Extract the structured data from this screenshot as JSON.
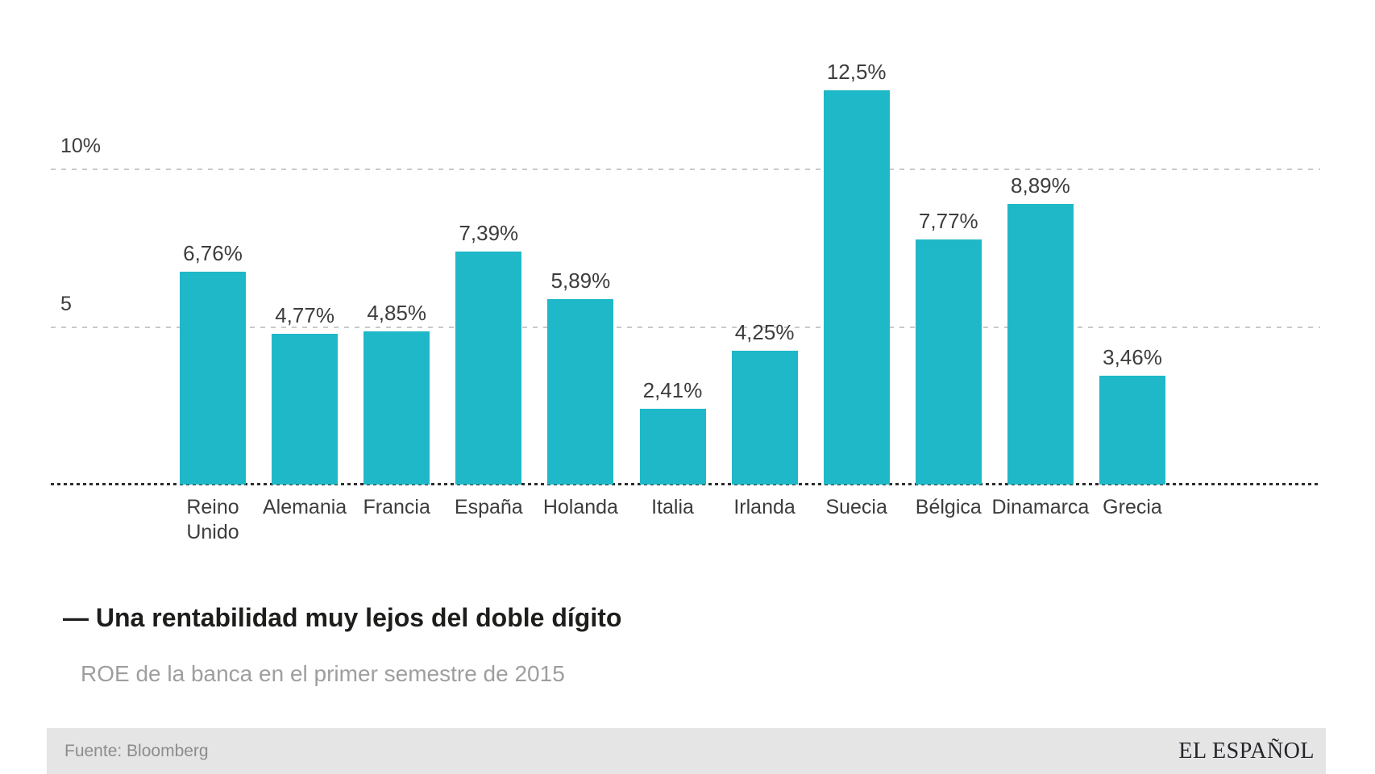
{
  "chart_data": {
    "type": "bar",
    "title": "— Una rentabilidad muy lejos del doble dígito",
    "subtitle": "ROE de la banca en el primer semestre de 2015",
    "categories": [
      "Reino\nUnido",
      "Alemania",
      "Francia",
      "España",
      "Holanda",
      "Italia",
      "Irlanda",
      "Suecia",
      "Bélgica",
      "Dinamarca",
      "Grecia"
    ],
    "values": [
      6.76,
      4.77,
      4.85,
      7.39,
      5.89,
      2.41,
      4.25,
      12.5,
      7.77,
      8.89,
      3.46
    ],
    "value_labels": [
      "6,76%",
      "4,77%",
      "4,85%",
      "7,39%",
      "5,89%",
      "2,41%",
      "4,25%",
      "12,5%",
      "7,77%",
      "8,89%",
      "3,46%"
    ],
    "unit": "%",
    "yticks": [
      {
        "value": 5,
        "label": "5"
      },
      {
        "value": 10,
        "label": "10%"
      }
    ],
    "ylim": [
      0,
      13.2
    ],
    "grid": true,
    "legend": false,
    "bar_color": "#1fb8c8",
    "gridline_color": "#c9c9c9",
    "baseline_color": "#2e2e2e"
  },
  "footer": {
    "source": "Fuente: Bloomberg",
    "brand": "EL ESPAÑOL"
  }
}
